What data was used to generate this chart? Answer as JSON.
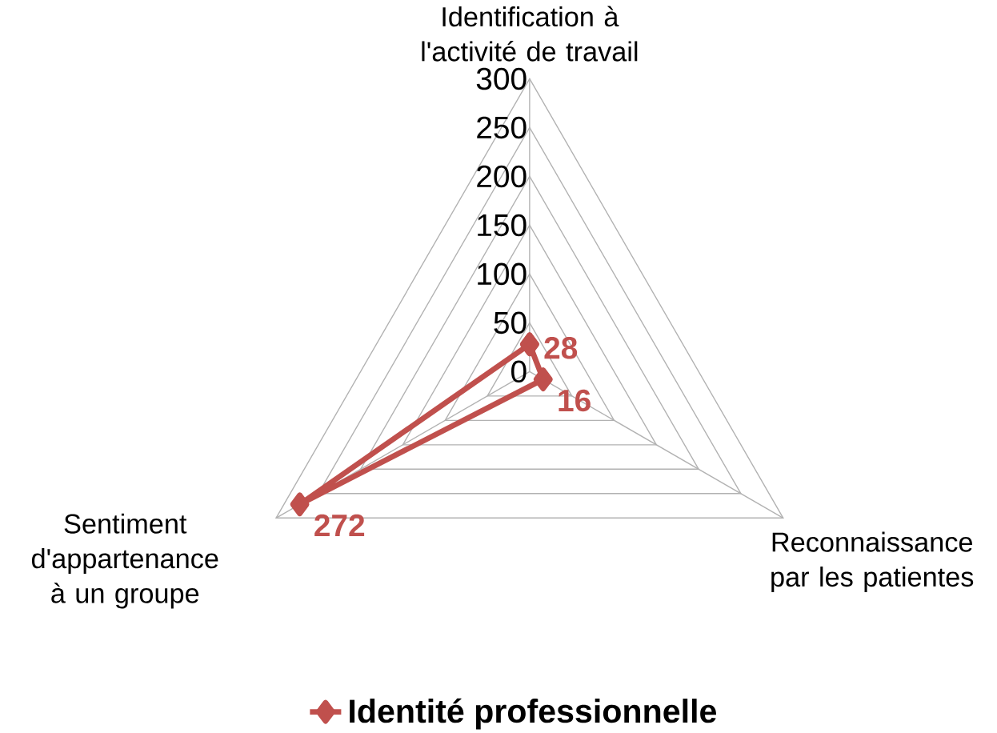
{
  "chart_data": {
    "type": "radar",
    "categories": [
      "Identification à l'activité de travail",
      "Reconnaissance par les patientes",
      "Sentiment d'appartenance à un groupe"
    ],
    "series": [
      {
        "name": "Identité professionnelle",
        "color": "#c0504d",
        "values": [
          28,
          16,
          272
        ]
      }
    ],
    "ylim": [
      0,
      300
    ],
    "yticks": [
      0,
      50,
      100,
      150,
      200,
      250,
      300
    ],
    "grid": true,
    "legend": "bottom",
    "marker": "diamond",
    "data_labels": true
  }
}
